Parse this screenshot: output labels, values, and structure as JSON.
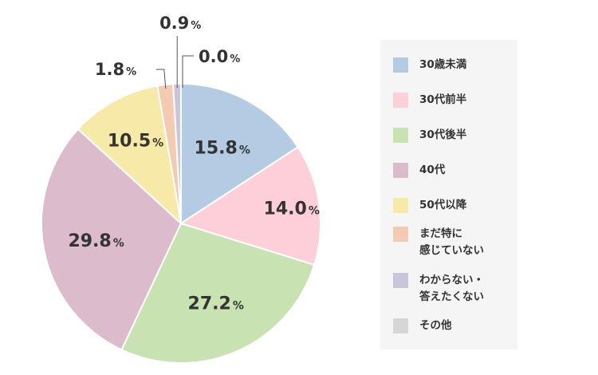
{
  "chart_data": {
    "type": "pie",
    "title": "",
    "unit": "%",
    "series": [
      {
        "name": "30歳未満",
        "value": 15.8,
        "color": "#b3cce3"
      },
      {
        "name": "30代前半",
        "value": 14.0,
        "color": "#fdd0d9"
      },
      {
        "name": "30代後半",
        "value": 27.2,
        "color": "#c8e2b2"
      },
      {
        "name": "40代",
        "value": 29.8,
        "color": "#dcbccc"
      },
      {
        "name": "50代以降",
        "value": 10.5,
        "color": "#f7e9a7"
      },
      {
        "name": "まだ特に\n感じていない",
        "value": 1.8,
        "color": "#f4cbb1"
      },
      {
        "name": "わからない・\n答えたくない",
        "value": 0.9,
        "color": "#c9c6dc"
      },
      {
        "name": "その他",
        "value": 0.0,
        "color": "#d6d6d6"
      }
    ],
    "value_labels": [
      "15.8",
      "14.0",
      "27.2",
      "29.8",
      "10.5",
      "1.8",
      "0.9",
      "0.0"
    ],
    "legend_position": "right"
  }
}
